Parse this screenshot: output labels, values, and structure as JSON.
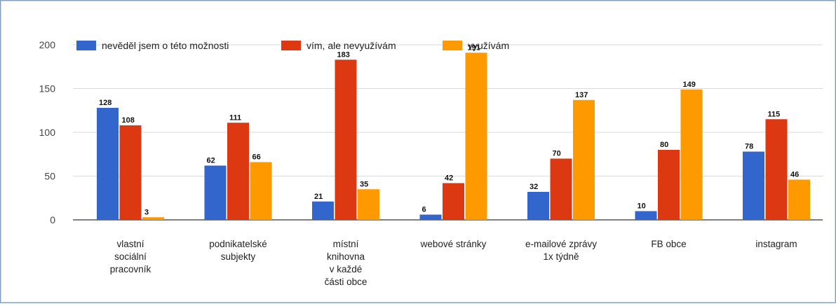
{
  "chart_data": {
    "type": "bar",
    "title": "",
    "xlabel": "",
    "ylabel": "",
    "ylim": [
      0,
      200
    ],
    "yticks": [
      0,
      50,
      100,
      150,
      200
    ],
    "grid": true,
    "legend_position": "top-left",
    "categories": [
      [
        "vlastní",
        "sociální",
        "pracovník"
      ],
      [
        "podnikatelské",
        "subjekty"
      ],
      [
        "místní",
        "knihovna",
        "v každé",
        "části obce"
      ],
      [
        "webové stránky"
      ],
      [
        "e-mailové zprávy",
        "1x týdně"
      ],
      [
        "FB obce"
      ],
      [
        "instagram"
      ]
    ],
    "series": [
      {
        "name": "nevěděl jsem o této možnosti",
        "color": "#3366cc",
        "values": [
          128,
          62,
          21,
          6,
          32,
          10,
          78
        ]
      },
      {
        "name": "vím, ale nevyužívám",
        "color": "#dc3912",
        "values": [
          108,
          111,
          183,
          42,
          70,
          80,
          115
        ]
      },
      {
        "name": "využívám",
        "color": "#ff9900",
        "values": [
          3,
          66,
          35,
          191,
          137,
          149,
          46
        ]
      }
    ]
  }
}
